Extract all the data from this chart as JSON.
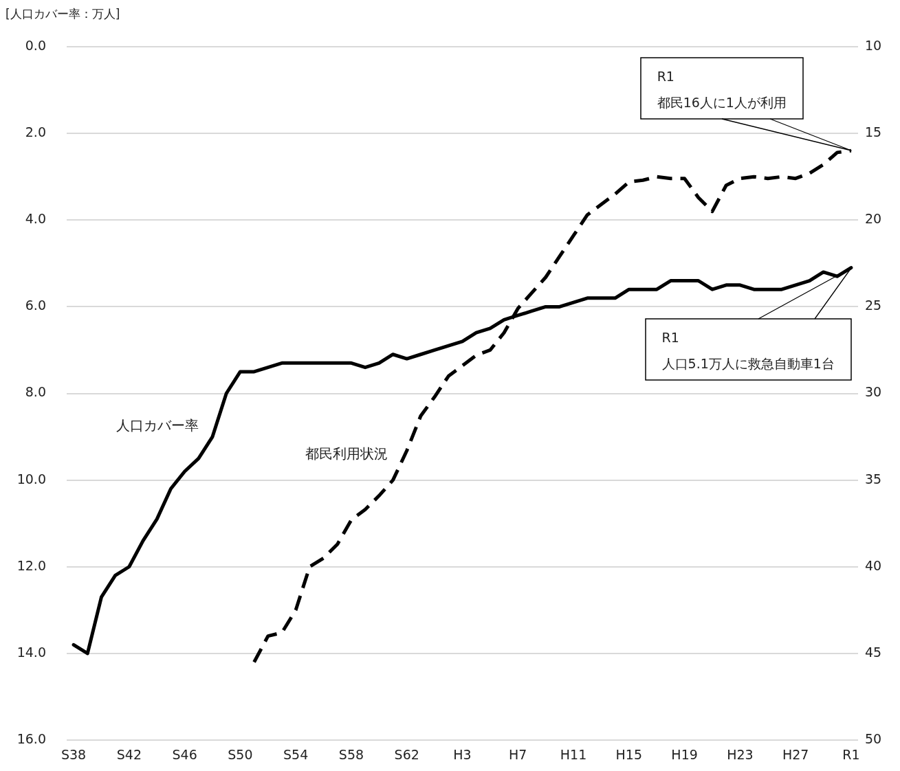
{
  "chart_data": {
    "type": "line",
    "ylabel": "[人口カバー率：万人]",
    "categories": [
      "S38",
      null,
      null,
      null,
      "S42",
      null,
      null,
      null,
      "S46",
      null,
      null,
      null,
      "S50",
      null,
      null,
      null,
      "S54",
      null,
      null,
      null,
      "S58",
      null,
      null,
      null,
      "S62",
      null,
      null,
      null,
      "H3",
      null,
      null,
      null,
      "H7",
      null,
      null,
      null,
      "H11",
      null,
      null,
      null,
      "H15",
      null,
      null,
      null,
      "H19",
      null,
      null,
      null,
      "H23",
      null,
      null,
      null,
      "H27",
      null,
      null,
      null,
      "R1"
    ],
    "series": [
      {
        "name": "人口カバー率",
        "color": "#000000",
        "line_style": "solid",
        "values": [
          13.8,
          14.0,
          12.7,
          12.2,
          12.0,
          11.4,
          10.9,
          10.2,
          9.8,
          9.5,
          9.0,
          8.0,
          7.5,
          7.5,
          7.4,
          7.3,
          7.3,
          7.3,
          7.3,
          7.3,
          7.3,
          7.4,
          7.3,
          7.1,
          7.2,
          7.1,
          7.0,
          6.9,
          6.8,
          6.6,
          6.5,
          6.3,
          6.2,
          6.1,
          6.0,
          6.0,
          5.9,
          5.8,
          5.8,
          5.8,
          5.6,
          5.6,
          5.6,
          5.4,
          5.4,
          5.4,
          5.6,
          5.5,
          5.5,
          5.6,
          5.6,
          5.6,
          5.5,
          5.4,
          5.2,
          5.3,
          5.1
        ]
      },
      {
        "name": "都民利用状況",
        "color": "#000000",
        "line_style": "dashed",
        "axis": "y2",
        "values": [
          null,
          null,
          null,
          null,
          null,
          null,
          null,
          null,
          null,
          null,
          null,
          null,
          null,
          45.5,
          44.0,
          43.8,
          42.5,
          40.0,
          39.5,
          38.7,
          37.3,
          36.7,
          35.9,
          35.0,
          33.3,
          31.3,
          30.2,
          29.0,
          28.4,
          27.8,
          27.5,
          26.5,
          25.1,
          24.2,
          23.3,
          22.1,
          20.9,
          19.7,
          19.1,
          18.5,
          17.8,
          17.7,
          17.5,
          17.6,
          17.6,
          18.7,
          19.5,
          18.0,
          17.6,
          17.5,
          17.6,
          17.5,
          17.6,
          17.3,
          16.8,
          16.1,
          16.0
        ]
      }
    ],
    "ylim": [
      16,
      0
    ],
    "yticks": [
      {
        "value": 0,
        "label": "0.0"
      },
      {
        "value": 2,
        "label": "2.0"
      },
      {
        "value": 4,
        "label": "4.0"
      },
      {
        "value": 6,
        "label": "6.0"
      },
      {
        "value": 8,
        "label": "8.0"
      },
      {
        "value": 10,
        "label": "10.0"
      },
      {
        "value": 12,
        "label": "12.0"
      },
      {
        "value": 14,
        "label": "14.0"
      },
      {
        "value": 16,
        "label": "16.0"
      }
    ],
    "y2lim": [
      50,
      10
    ],
    "y2ticks": [
      10,
      15,
      20,
      25,
      30,
      35,
      40,
      45,
      50
    ],
    "grid": "y",
    "legend": false,
    "marker": "none",
    "annotations": [
      "R1\n都民16人に1人が利用",
      "R1\n人口5.1万人に救急自動車1台"
    ]
  }
}
